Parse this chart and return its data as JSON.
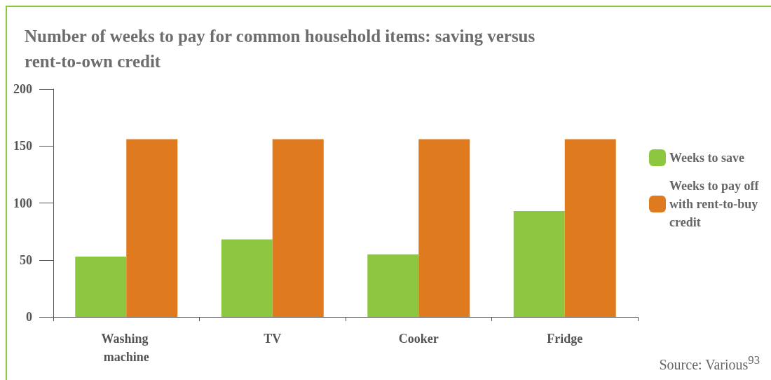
{
  "chart_data": {
    "type": "bar",
    "title": "Number of weeks to pay for common household items: saving versus rent-to-own credit",
    "categories": [
      "Washing machine",
      "TV",
      "Cooker",
      "Fridge"
    ],
    "series": [
      {
        "name": "Weeks to save",
        "color": "#8dc63f",
        "values": [
          53,
          68,
          55,
          93
        ]
      },
      {
        "name": "Weeks to pay off with rent-to-buy credit",
        "color": "#e07a1f",
        "values": [
          156,
          156,
          156,
          156
        ]
      }
    ],
    "ylim": [
      0,
      200
    ],
    "yticks": [
      0,
      50,
      100,
      150,
      200
    ],
    "grid": false,
    "legend": "right",
    "annotations": [
      "Source: Various$^{93}$"
    ]
  }
}
